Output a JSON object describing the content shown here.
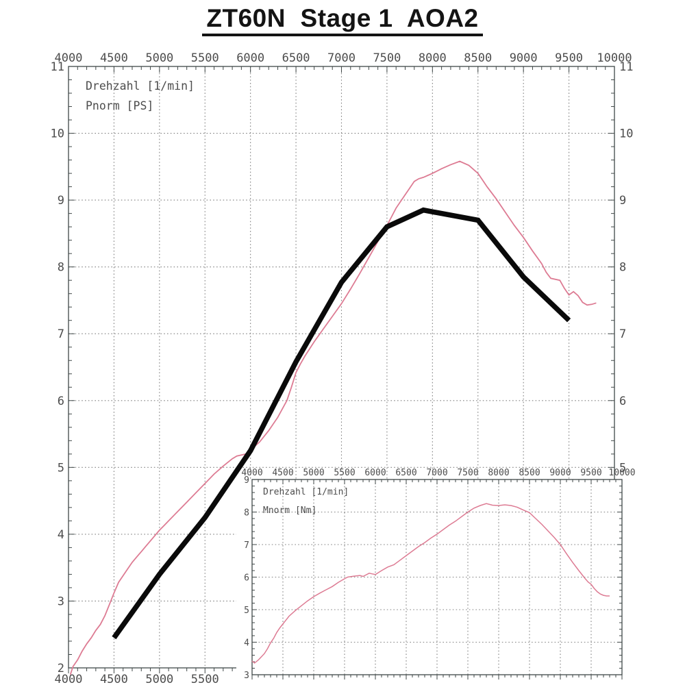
{
  "page_title": "ZT60N  Stage 1  AOA2",
  "colors": {
    "curve_pink": "#dd7b93",
    "curve_black": "#0a0a0a",
    "axis": "#3f4747",
    "tick_text": "#4c4c4c",
    "grid": "#808080"
  },
  "chart_data": [
    {
      "id": "main",
      "type": "line",
      "title": "ZT60N Stage 1 AOA2",
      "annotations": [
        "Drehzahl [1/min]",
        "Pnorm [PS]"
      ],
      "xlabel": "Drehzahl [1/min]",
      "ylabel": "Pnorm [PS]",
      "xlim": [
        4000,
        10000
      ],
      "ylim": [
        2,
        11
      ],
      "x_major_step": 500,
      "x_minor_step": 100,
      "y_major_step": 1,
      "y_minor_step": 0.2,
      "grid": "dotted",
      "legend_position": "top-left-inside",
      "x_tick_labels_top": [
        "4000",
        "4500",
        "5000",
        "5500",
        "6000",
        "6500",
        "7000",
        "7500",
        "8000",
        "8500",
        "9000",
        "9500",
        "10000"
      ],
      "x_tick_labels_bottom": [
        "4000",
        "4500",
        "5000",
        "5500"
      ],
      "y_tick_labels_left": [
        "11",
        "10",
        "9",
        "8",
        "7",
        "6",
        "5",
        "4",
        "3",
        "2"
      ],
      "y_tick_labels_right": [
        "11",
        "10",
        "9",
        "8",
        "7",
        "6",
        "5"
      ],
      "series": [
        {
          "name": "Pnorm [PS]",
          "style": "thin",
          "color": "#dd7b93",
          "width": 1.8,
          "points": [
            [
              4020,
              1.9
            ],
            [
              4050,
              2.02
            ],
            [
              4100,
              2.12
            ],
            [
              4150,
              2.25
            ],
            [
              4200,
              2.36
            ],
            [
              4250,
              2.45
            ],
            [
              4300,
              2.56
            ],
            [
              4350,
              2.65
            ],
            [
              4400,
              2.78
            ],
            [
              4450,
              2.95
            ],
            [
              4500,
              3.12
            ],
            [
              4550,
              3.28
            ],
            [
              4600,
              3.38
            ],
            [
              4650,
              3.48
            ],
            [
              4700,
              3.58
            ],
            [
              4750,
              3.66
            ],
            [
              4800,
              3.74
            ],
            [
              4850,
              3.82
            ],
            [
              4900,
              3.9
            ],
            [
              4950,
              3.98
            ],
            [
              5000,
              4.06
            ],
            [
              5050,
              4.13
            ],
            [
              5100,
              4.2
            ],
            [
              5200,
              4.34
            ],
            [
              5300,
              4.48
            ],
            [
              5400,
              4.62
            ],
            [
              5500,
              4.76
            ],
            [
              5600,
              4.9
            ],
            [
              5700,
              5.02
            ],
            [
              5800,
              5.13
            ],
            [
              5850,
              5.17
            ],
            [
              5950,
              5.2
            ],
            [
              6000,
              5.24
            ],
            [
              6050,
              5.32
            ],
            [
              6100,
              5.38
            ],
            [
              6200,
              5.55
            ],
            [
              6300,
              5.75
            ],
            [
              6400,
              6.0
            ],
            [
              6450,
              6.2
            ],
            [
              6500,
              6.42
            ],
            [
              6550,
              6.55
            ],
            [
              6600,
              6.67
            ],
            [
              6700,
              6.88
            ],
            [
              6800,
              7.07
            ],
            [
              6900,
              7.26
            ],
            [
              7000,
              7.45
            ],
            [
              7100,
              7.67
            ],
            [
              7200,
              7.9
            ],
            [
              7300,
              8.14
            ],
            [
              7400,
              8.38
            ],
            [
              7500,
              8.62
            ],
            [
              7550,
              8.75
            ],
            [
              7600,
              8.88
            ],
            [
              7700,
              9.08
            ],
            [
              7750,
              9.18
            ],
            [
              7800,
              9.28
            ],
            [
              7850,
              9.32
            ],
            [
              7900,
              9.34
            ],
            [
              7950,
              9.37
            ],
            [
              8000,
              9.4
            ],
            [
              8100,
              9.47
            ],
            [
              8200,
              9.53
            ],
            [
              8300,
              9.58
            ],
            [
              8400,
              9.52
            ],
            [
              8500,
              9.4
            ],
            [
              8550,
              9.3
            ],
            [
              8600,
              9.2
            ],
            [
              8700,
              9.02
            ],
            [
              8800,
              8.82
            ],
            [
              8900,
              8.62
            ],
            [
              9000,
              8.44
            ],
            [
              9100,
              8.24
            ],
            [
              9200,
              8.05
            ],
            [
              9250,
              7.92
            ],
            [
              9300,
              7.83
            ],
            [
              9400,
              7.8
            ],
            [
              9450,
              7.68
            ],
            [
              9500,
              7.58
            ],
            [
              9550,
              7.63
            ],
            [
              9600,
              7.57
            ],
            [
              9650,
              7.47
            ],
            [
              9700,
              7.43
            ],
            [
              9750,
              7.44
            ],
            [
              9800,
              7.46
            ]
          ]
        },
        {
          "name": "Pnorm [PS] bold overlay",
          "style": "bold",
          "color": "#0a0a0a",
          "width": 7.5,
          "points": [
            [
              4500,
              2.45
            ],
            [
              5000,
              3.4
            ],
            [
              5500,
              4.25
            ],
            [
              6000,
              5.25
            ],
            [
              6500,
              6.58
            ],
            [
              7000,
              7.77
            ],
            [
              7500,
              8.6
            ],
            [
              7900,
              8.85
            ],
            [
              8500,
              8.7
            ],
            [
              9000,
              7.85
            ],
            [
              9500,
              7.2
            ]
          ]
        }
      ]
    },
    {
      "id": "inset",
      "type": "line",
      "title": "",
      "annotations": [
        "Drehzahl [1/min]",
        "Mnorm [Nm]"
      ],
      "xlabel": "Drehzahl [1/min]",
      "ylabel": "Mnorm [Nm]",
      "xlim": [
        4000,
        10000
      ],
      "ylim": [
        3,
        9
      ],
      "x_major_step": 500,
      "x_minor_step": 100,
      "y_major_step": 1,
      "y_minor_step": 0.2,
      "grid": "dotted",
      "legend_position": "top-left-inside",
      "x_tick_labels_top": [
        "4000",
        "4500",
        "5000",
        "5500",
        "6000",
        "6500",
        "7000",
        "7500",
        "8000",
        "8500",
        "9000",
        "9500",
        "10000"
      ],
      "x_tick_labels_bottom": [],
      "y_tick_labels_left": [
        "9",
        "8",
        "7",
        "6",
        "5",
        "4",
        "3"
      ],
      "y_tick_labels_right": [],
      "series": [
        {
          "name": "Mnorm [Nm]",
          "style": "thin",
          "color": "#dd7b93",
          "width": 1.5,
          "points": [
            [
              4000,
              3.42
            ],
            [
              4040,
              3.36
            ],
            [
              4100,
              3.45
            ],
            [
              4150,
              3.55
            ],
            [
              4200,
              3.65
            ],
            [
              4250,
              3.8
            ],
            [
              4300,
              3.98
            ],
            [
              4350,
              4.12
            ],
            [
              4400,
              4.3
            ],
            [
              4450,
              4.44
            ],
            [
              4500,
              4.56
            ],
            [
              4550,
              4.68
            ],
            [
              4600,
              4.8
            ],
            [
              4700,
              4.97
            ],
            [
              4800,
              5.12
            ],
            [
              4900,
              5.27
            ],
            [
              5000,
              5.4
            ],
            [
              5100,
              5.51
            ],
            [
              5200,
              5.61
            ],
            [
              5300,
              5.71
            ],
            [
              5400,
              5.84
            ],
            [
              5500,
              5.95
            ],
            [
              5550,
              6.0
            ],
            [
              5650,
              6.03
            ],
            [
              5750,
              6.05
            ],
            [
              5800,
              6.02
            ],
            [
              5900,
              6.12
            ],
            [
              5950,
              6.1
            ],
            [
              6000,
              6.08
            ],
            [
              6100,
              6.2
            ],
            [
              6200,
              6.31
            ],
            [
              6300,
              6.38
            ],
            [
              6400,
              6.52
            ],
            [
              6500,
              6.66
            ],
            [
              6600,
              6.8
            ],
            [
              6700,
              6.94
            ],
            [
              6800,
              7.06
            ],
            [
              6900,
              7.2
            ],
            [
              7000,
              7.32
            ],
            [
              7100,
              7.46
            ],
            [
              7200,
              7.6
            ],
            [
              7300,
              7.72
            ],
            [
              7400,
              7.86
            ],
            [
              7500,
              8.0
            ],
            [
              7600,
              8.12
            ],
            [
              7700,
              8.2
            ],
            [
              7800,
              8.26
            ],
            [
              7900,
              8.21
            ],
            [
              8000,
              8.2
            ],
            [
              8100,
              8.22
            ],
            [
              8200,
              8.2
            ],
            [
              8300,
              8.15
            ],
            [
              8400,
              8.06
            ],
            [
              8500,
              7.98
            ],
            [
              8600,
              7.8
            ],
            [
              8700,
              7.62
            ],
            [
              8800,
              7.42
            ],
            [
              8900,
              7.22
            ],
            [
              9000,
              7.0
            ],
            [
              9100,
              6.72
            ],
            [
              9200,
              6.45
            ],
            [
              9300,
              6.2
            ],
            [
              9400,
              5.96
            ],
            [
              9450,
              5.85
            ],
            [
              9500,
              5.78
            ],
            [
              9550,
              5.65
            ],
            [
              9600,
              5.55
            ],
            [
              9650,
              5.48
            ],
            [
              9700,
              5.44
            ],
            [
              9750,
              5.42
            ],
            [
              9800,
              5.42
            ]
          ]
        }
      ]
    }
  ]
}
